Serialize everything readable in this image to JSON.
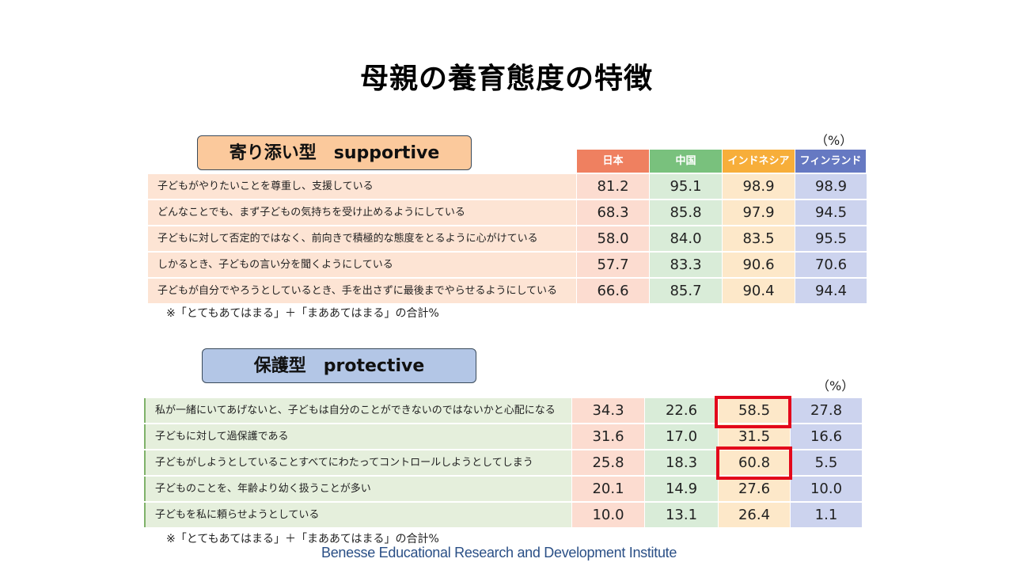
{
  "title": "母親の養育態度の特徴",
  "colors": {
    "japan": "#ef8060",
    "china": "#79c17d",
    "indonesia": "#f7ae3a",
    "finland": "#6679c2",
    "highlight": "#e3071b"
  },
  "columns": [
    "日本",
    "中国",
    "インドネシア",
    "フィンランド"
  ],
  "supportive": {
    "label": "寄り添い型　supportive",
    "unit": "（%）",
    "rows": [
      {
        "item": "子どもがやりたいことを尊重し、支援している",
        "values": [
          "81.2",
          "95.1",
          "98.9",
          "98.9"
        ]
      },
      {
        "item": "どんなことでも、まず子どもの気持ちを受け止めるようにしている",
        "values": [
          "68.3",
          "85.8",
          "97.9",
          "94.5"
        ]
      },
      {
        "item": "子どもに対して否定的ではなく、前向きで積極的な態度をとるように心がけている",
        "values": [
          "58.0",
          "84.0",
          "83.5",
          "95.5"
        ]
      },
      {
        "item": "しかるとき、子どもの言い分を聞くようにしている",
        "values": [
          "57.7",
          "83.3",
          "90.6",
          "70.6"
        ]
      },
      {
        "item": "子どもが自分でやろうとしているとき、手を出さずに最後までやらせるようにしている",
        "values": [
          "66.6",
          "85.7",
          "90.4",
          "94.4"
        ]
      }
    ],
    "footnote": "※「とてもあてはまる」＋「まああてはまる」の合計%"
  },
  "protective": {
    "label": "保護型　protective",
    "unit": "（%）",
    "rows": [
      {
        "item": "私が一緒にいてあげないと、子どもは自分のことができないのではないかと心配になる",
        "values": [
          "34.3",
          "22.6",
          "58.5",
          "27.8"
        ]
      },
      {
        "item": "子どもに対して過保護である",
        "values": [
          "31.6",
          "17.0",
          "31.5",
          "16.6"
        ]
      },
      {
        "item": "子どもがしようとしていることすべてにわたってコントロールしようとしてしまう",
        "values": [
          "25.8",
          "18.3",
          "60.8",
          "5.5"
        ]
      },
      {
        "item": "子どものことを、年齢より幼く扱うことが多い",
        "values": [
          "20.1",
          "14.9",
          "27.6",
          "10.0"
        ]
      },
      {
        "item": "子どもを私に頼らせようとしている",
        "values": [
          "10.0",
          "13.1",
          "26.4",
          "1.1"
        ]
      }
    ],
    "footnote": "※「とてもあてはまる」＋「まああてはまる」の合計%"
  },
  "institute": "Benesse Educational Research and Development Institute"
}
